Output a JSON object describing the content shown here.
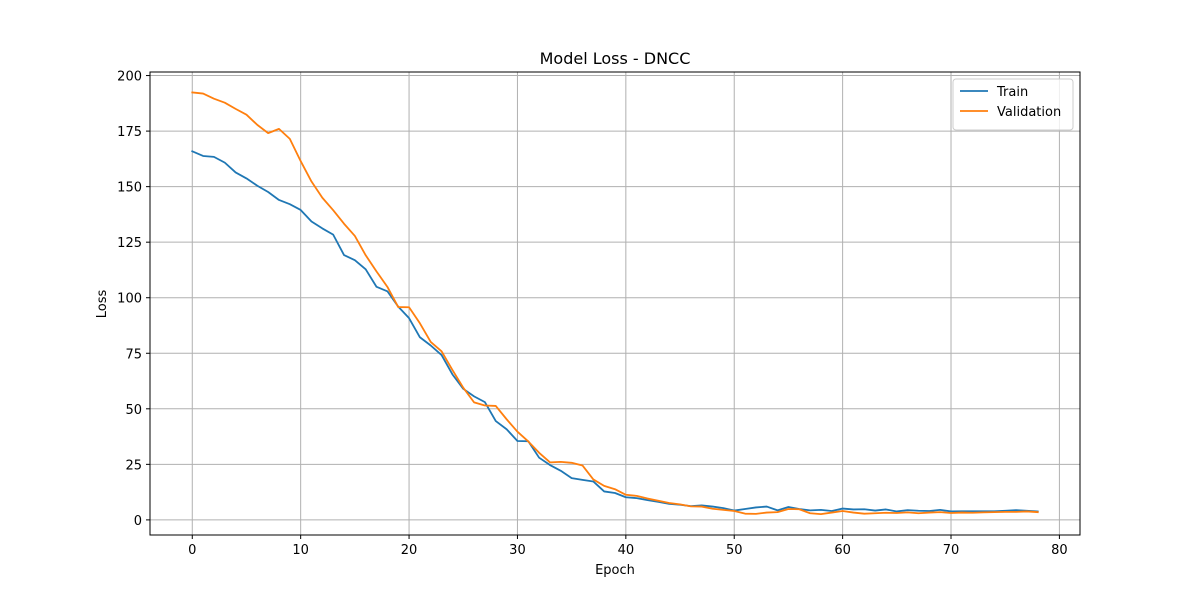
{
  "chart_data": {
    "type": "line",
    "title": "Model Loss - DNCC",
    "xlabel": "Epoch",
    "ylabel": "Loss",
    "xlim": [
      -3.9,
      81.9
    ],
    "ylim": [
      -6.8,
      201.6
    ],
    "xticks": [
      0,
      10,
      20,
      30,
      40,
      50,
      60,
      70,
      80
    ],
    "yticks": [
      0,
      25,
      50,
      75,
      100,
      125,
      150,
      175,
      200
    ],
    "grid": true,
    "legend_position": "top-right",
    "x": [
      0,
      1,
      2,
      3,
      4,
      5,
      6,
      7,
      8,
      9,
      10,
      11,
      12,
      13,
      14,
      15,
      16,
      17,
      18,
      19,
      20,
      21,
      22,
      23,
      24,
      25,
      26,
      27,
      28,
      29,
      30,
      31,
      32,
      33,
      34,
      35,
      36,
      37,
      38,
      39,
      40,
      41,
      42,
      43,
      44,
      45,
      46,
      47,
      48,
      49,
      50,
      51,
      52,
      53,
      54,
      55,
      56,
      57,
      58,
      59,
      60,
      61,
      62,
      63,
      64,
      65,
      66,
      67,
      68,
      69,
      70,
      71,
      72,
      73,
      74,
      75,
      76,
      77,
      78
    ],
    "series": [
      {
        "name": "Train",
        "color": "#1f77b4",
        "values": [
          165.9,
          163.8,
          163.4,
          160.8,
          156.4,
          153.7,
          150.4,
          147.6,
          144.0,
          142.1,
          139.5,
          134.3,
          131.2,
          128.4,
          119.2,
          116.9,
          112.8,
          104.9,
          102.9,
          96.0,
          90.8,
          82.2,
          78.5,
          74.2,
          65.5,
          59.0,
          55.6,
          53.0,
          44.5,
          40.8,
          35.5,
          35.4,
          28.0,
          24.7,
          22.1,
          18.8,
          18.0,
          17.3,
          12.8,
          12.1,
          10.2,
          9.8,
          8.9,
          8.1,
          7.2,
          6.8,
          6.2,
          6.5,
          6.0,
          5.3,
          4.2,
          4.9,
          5.6,
          6.0,
          4.3,
          5.8,
          4.9,
          4.3,
          4.5,
          4.0,
          5.1,
          4.7,
          4.8,
          4.2,
          4.7,
          3.8,
          4.4,
          4.1,
          4.0,
          4.5,
          3.8,
          3.9,
          3.9,
          3.9,
          3.9,
          4.1,
          4.4,
          4.1,
          3.8
        ]
      },
      {
        "name": "Validation",
        "color": "#ff7f0e",
        "values": [
          192.4,
          191.9,
          189.6,
          187.8,
          185.0,
          182.4,
          177.8,
          174.1,
          176.0,
          171.5,
          161.5,
          152.3,
          145.0,
          139.4,
          133.3,
          127.8,
          119.1,
          111.8,
          104.9,
          95.8,
          95.7,
          88.5,
          80.1,
          75.9,
          67.5,
          59.5,
          52.9,
          51.5,
          51.3,
          45.3,
          39.7,
          35.3,
          30.2,
          25.9,
          26.1,
          25.7,
          24.5,
          18.2,
          15.3,
          13.8,
          11.3,
          10.8,
          9.6,
          8.6,
          7.6,
          7.0,
          6.1,
          6.0,
          5.0,
          4.5,
          4.0,
          2.8,
          2.7,
          3.3,
          3.5,
          4.9,
          4.8,
          3.0,
          2.6,
          3.3,
          4.0,
          3.3,
          2.8,
          3.0,
          3.2,
          3.1,
          3.4,
          3.0,
          3.3,
          3.5,
          3.1,
          3.3,
          3.2,
          3.4,
          3.5,
          3.6,
          3.6,
          3.8,
          3.5
        ]
      }
    ]
  }
}
